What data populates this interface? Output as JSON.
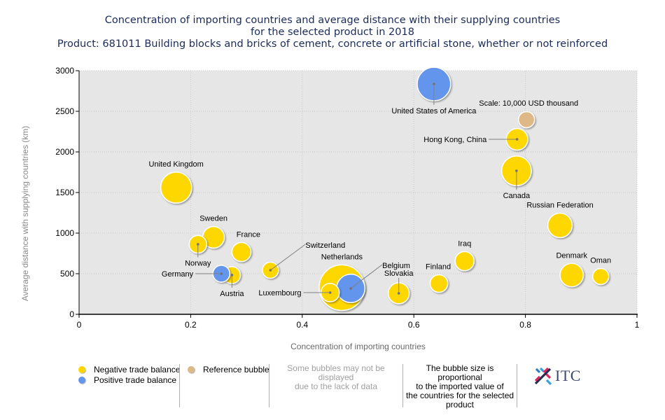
{
  "title": {
    "line1": "Concentration of importing countries and average distance with their supplying countries",
    "line2": "for the selected product in 2018",
    "line3": "Product: 681011 Building blocks and bricks of cement, concrete or artificial stone, whether or not reinforced"
  },
  "colors": {
    "negative": "#FFD700",
    "positive": "#6495ED",
    "reference": "#DEB887",
    "plot_bg": "#E6E6E6",
    "leader": "#808080"
  },
  "chart_data": {
    "type": "scatter",
    "subtype": "bubble",
    "title": "Concentration of importing countries and average distance with their supplying countries for the selected product in 2018",
    "xlabel": "Concentration of importing countries",
    "ylabel": "Average distance with supplying countries (km)",
    "xlim": [
      0,
      1
    ],
    "ylim": [
      0,
      3000
    ],
    "xticks": [
      "0",
      "0.2",
      "0.4",
      "0.6",
      "0.8",
      "1"
    ],
    "xtick_values": [
      0,
      0.2,
      0.4,
      0.6,
      0.8,
      1
    ],
    "yticks": [
      "0",
      "500",
      "1000",
      "1500",
      "2000",
      "2500",
      "3000"
    ],
    "ytick_values": [
      0,
      500,
      1000,
      1500,
      2000,
      2500,
      3000
    ],
    "grid": true,
    "size_unit": "USD thousand (estimated from bubble area)",
    "reference": {
      "label": "Scale: 10,000 USD thousand",
      "x": 0.802,
      "y": 2397,
      "size": 10000
    },
    "points": [
      {
        "name": "Netherlands",
        "x": 0.471,
        "y": 328,
        "size": 80000,
        "balance": "negative",
        "label_pos": "top"
      },
      {
        "name": "United States of America",
        "x": 0.636,
        "y": 2836,
        "size": 43000,
        "balance": "positive",
        "label_pos": "below-leader"
      },
      {
        "name": "United Kingdom",
        "x": 0.174,
        "y": 1560,
        "size": 37000,
        "balance": "negative",
        "label_pos": "top"
      },
      {
        "name": "Canada",
        "x": 0.784,
        "y": 1767,
        "size": 34000,
        "balance": "negative",
        "label_pos": "below-leader"
      },
      {
        "name": "Belgium",
        "x": 0.487,
        "y": 319,
        "size": 31000,
        "balance": "positive",
        "label_pos": "upright-leader"
      },
      {
        "name": "Russian Federation",
        "x": 0.862,
        "y": 1095,
        "size": 23000,
        "balance": "negative",
        "label_pos": "top"
      },
      {
        "name": "Denmark",
        "x": 0.883,
        "y": 483,
        "size": 21000,
        "balance": "negative",
        "label_pos": "top"
      },
      {
        "name": "Hong Kong, China",
        "x": 0.785,
        "y": 2155,
        "size": 18000,
        "balance": "negative",
        "label_pos": "left-leader"
      },
      {
        "name": "Sweden",
        "x": 0.241,
        "y": 948,
        "size": 18000,
        "balance": "negative",
        "label_pos": "top"
      },
      {
        "name": "Slovakia",
        "x": 0.573,
        "y": 259,
        "size": 17000,
        "balance": "negative",
        "label_pos": "above-leader"
      },
      {
        "name": "France",
        "x": 0.291,
        "y": 767,
        "size": 14000,
        "balance": "negative",
        "label_pos": "topright"
      },
      {
        "name": "Iraq",
        "x": 0.691,
        "y": 655,
        "size": 14000,
        "balance": "negative",
        "label_pos": "top"
      },
      {
        "name": "Luxembourg",
        "x": 0.45,
        "y": 267,
        "size": 13000,
        "balance": "negative",
        "label_pos": "left-leader"
      },
      {
        "name": "Norway",
        "x": 0.213,
        "y": 862,
        "size": 12000,
        "balance": "negative",
        "label_pos": "below-leader"
      },
      {
        "name": "Finland",
        "x": 0.645,
        "y": 379,
        "size": 12000,
        "balance": "negative",
        "label_pos": "topleft"
      },
      {
        "name": "Austria",
        "x": 0.274,
        "y": 483,
        "size": 11000,
        "balance": "negative",
        "label_pos": "below-leader"
      },
      {
        "name": "Germany",
        "x": 0.255,
        "y": 500,
        "size": 11000,
        "balance": "positive",
        "label_pos": "left-leader"
      },
      {
        "name": "Switzerland",
        "x": 0.343,
        "y": 543,
        "size": 10000,
        "balance": "negative",
        "label_pos": "upright-leader"
      },
      {
        "name": "Oman",
        "x": 0.935,
        "y": 466,
        "size": 10000,
        "balance": "negative",
        "label_pos": "top"
      }
    ]
  },
  "legend": {
    "negative": "Negative trade balance",
    "positive": "Positive trade balance",
    "reference": "Reference bubble",
    "missing_note_1": "Some bubbles may not be displayed",
    "missing_note_2": "due to the lack of data",
    "size_note_1": "The bubble size is proportional",
    "size_note_2": "to the imported value of",
    "size_note_3": "the countries for the selected",
    "size_note_4": "product"
  },
  "logo": {
    "text": "ITC",
    "icon": "itc-cross-logo-icon"
  }
}
